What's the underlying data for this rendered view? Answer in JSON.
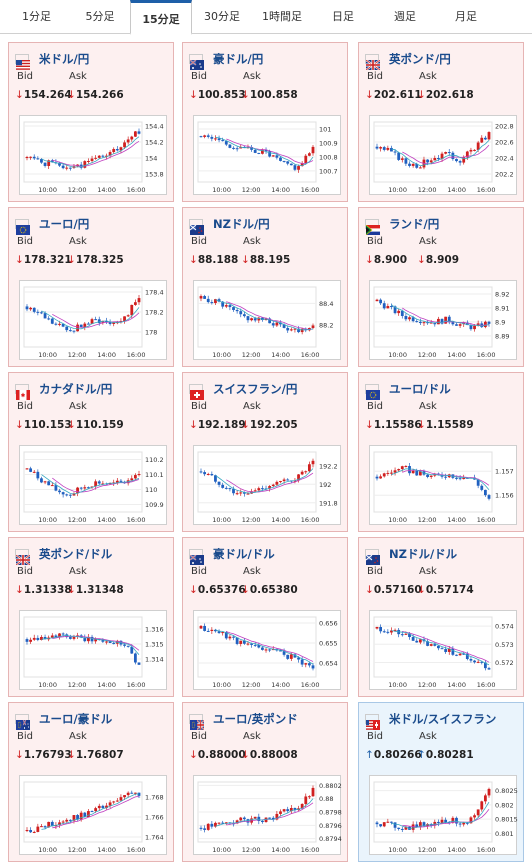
{
  "colors": {
    "up": "#d02020",
    "down": "#2060c0",
    "ma": "#c040c0",
    "ma2": "#38a8c0",
    "down_price": "#d02020",
    "up_price": "#1e5fa8"
  },
  "tabs": [
    {
      "label": "1分足",
      "active": false
    },
    {
      "label": "5分足",
      "active": false
    },
    {
      "label": "15分足",
      "active": true
    },
    {
      "label": "30分足",
      "active": false
    },
    {
      "label": "1時間足",
      "active": false
    },
    {
      "label": "日足",
      "active": false
    },
    {
      "label": "週足",
      "active": false
    },
    {
      "label": "月足",
      "active": false
    }
  ],
  "bid_label": "Bid",
  "ask_label": "Ask",
  "cards": [
    {
      "name": "米ドル/円",
      "flag": "us-flag",
      "dir": "down",
      "bid": "154.264",
      "ask": "154.266",
      "chart_data": {
        "type": "candlestick",
        "x_ticks": [
          "10:00",
          "12:00",
          "14:00",
          "16:00"
        ],
        "y_ticks": [
          "154.4",
          "154.2",
          "154",
          "153.8"
        ],
        "ylim": [
          153.7,
          154.45
        ],
        "seed": 1,
        "trend": [
          0.4,
          0.3,
          0.25,
          0.2,
          0.35,
          0.45,
          0.6,
          0.9
        ]
      }
    },
    {
      "name": "豪ドル/円",
      "flag": "au-flag",
      "dir": "down",
      "bid": "100.853",
      "ask": "100.858",
      "chart_data": {
        "type": "candlestick",
        "x_ticks": [
          "10:00",
          "12:00",
          "14:00",
          "16:00"
        ],
        "y_ticks": [
          "101",
          "100.9",
          "100.8",
          "100.7"
        ],
        "ylim": [
          100.62,
          101.05
        ],
        "seed": 2,
        "trend": [
          0.8,
          0.75,
          0.6,
          0.55,
          0.5,
          0.3,
          0.2,
          0.55
        ]
      }
    },
    {
      "name": "英ポンド/円",
      "flag": "gb-flag",
      "dir": "down",
      "bid": "202.611",
      "ask": "202.618",
      "chart_data": {
        "type": "candlestick",
        "x_ticks": [
          "10:00",
          "12:00",
          "14:00",
          "16:00"
        ],
        "y_ticks": [
          "202.8",
          "202.6",
          "202.4",
          "202.2"
        ],
        "ylim": [
          202.1,
          202.85
        ],
        "seed": 3,
        "trend": [
          0.6,
          0.5,
          0.3,
          0.25,
          0.4,
          0.45,
          0.35,
          0.6,
          0.85
        ]
      }
    },
    {
      "name": "ユーロ/円",
      "flag": "eu-flag",
      "dir": "down",
      "bid": "178.321",
      "ask": "178.325",
      "chart_data": {
        "type": "candlestick",
        "x_ticks": [
          "10:00",
          "12:00",
          "14:00",
          "16:00"
        ],
        "y_ticks": [
          "178.4",
          "178.2",
          "178"
        ],
        "ylim": [
          177.85,
          178.45
        ],
        "seed": 4,
        "trend": [
          0.7,
          0.55,
          0.35,
          0.25,
          0.35,
          0.45,
          0.4,
          0.5,
          0.85
        ]
      }
    },
    {
      "name": "NZドル/円",
      "flag": "nz-flag",
      "dir": "down",
      "bid": "88.188",
      "ask": "88.195",
      "chart_data": {
        "type": "candlestick",
        "x_ticks": [
          "10:00",
          "12:00",
          "14:00",
          "16:00"
        ],
        "y_ticks": [
          "88.4",
          "88.2"
        ],
        "ylim": [
          88.0,
          88.55
        ],
        "seed": 5,
        "trend": [
          0.85,
          0.8,
          0.65,
          0.5,
          0.45,
          0.4,
          0.3,
          0.25,
          0.35
        ]
      }
    },
    {
      "name": "ランド/円",
      "flag": "za-flag",
      "dir": "down",
      "bid": "8.900",
      "ask": "8.909",
      "chart_data": {
        "type": "candlestick",
        "x_ticks": [
          "10:00",
          "12:00",
          "14:00",
          "16:00"
        ],
        "y_ticks": [
          "8.92",
          "8.91",
          "8.9",
          "8.89"
        ],
        "ylim": [
          8.882,
          8.925
        ],
        "seed": 6,
        "trend": [
          0.8,
          0.65,
          0.5,
          0.45,
          0.4,
          0.45,
          0.35,
          0.3,
          0.4
        ]
      }
    },
    {
      "name": "カナダドル/円",
      "flag": "ca-flag",
      "dir": "down",
      "bid": "110.153",
      "ask": "110.159",
      "chart_data": {
        "type": "candlestick",
        "x_ticks": [
          "10:00",
          "12:00",
          "14:00",
          "16:00"
        ],
        "y_ticks": [
          "110.2",
          "110.1",
          "110",
          "109.9"
        ],
        "ylim": [
          109.85,
          110.25
        ],
        "seed": 7,
        "trend": [
          0.75,
          0.55,
          0.35,
          0.25,
          0.4,
          0.5,
          0.45,
          0.5,
          0.7
        ]
      }
    },
    {
      "name": "スイスフラン/円",
      "flag": "ch-flag",
      "dir": "down",
      "bid": "192.189",
      "ask": "192.205",
      "chart_data": {
        "type": "candlestick",
        "x_ticks": [
          "10:00",
          "12:00",
          "14:00",
          "16:00"
        ],
        "y_ticks": [
          "192.2",
          "192",
          "191.8"
        ],
        "ylim": [
          191.7,
          192.35
        ],
        "seed": 8,
        "trend": [
          0.7,
          0.55,
          0.35,
          0.25,
          0.35,
          0.45,
          0.5,
          0.6,
          0.85
        ]
      }
    },
    {
      "name": "ユーロ/ドル",
      "flag": "eu-flag",
      "dir": "down",
      "bid": "1.15586",
      "ask": "1.15589",
      "chart_data": {
        "type": "candlestick",
        "x_ticks": [
          "10:00",
          "12:00",
          "14:00",
          "16:00"
        ],
        "y_ticks": [
          "1.157",
          "1.156"
        ],
        "ylim": [
          1.1553,
          1.1578
        ],
        "seed": 9,
        "trend": [
          0.6,
          0.7,
          0.75,
          0.65,
          0.6,
          0.65,
          0.6,
          0.55,
          0.15
        ]
      }
    },
    {
      "name": "英ポンド/ドル",
      "flag": "gb-flag",
      "dir": "down",
      "bid": "1.31338",
      "ask": "1.31348",
      "chart_data": {
        "type": "candlestick",
        "x_ticks": [
          "10:00",
          "12:00",
          "14:00",
          "16:00"
        ],
        "y_ticks": [
          "1.316",
          "1.315",
          "1.314"
        ],
        "ylim": [
          1.3128,
          1.3168
        ],
        "seed": 10,
        "trend": [
          0.65,
          0.7,
          0.72,
          0.68,
          0.65,
          0.62,
          0.6,
          0.58,
          0.15
        ]
      }
    },
    {
      "name": "豪ドル/ドル",
      "flag": "au-flag",
      "dir": "down",
      "bid": "0.65376",
      "ask": "0.65380",
      "chart_data": {
        "type": "candlestick",
        "x_ticks": [
          "10:00",
          "12:00",
          "14:00",
          "16:00"
        ],
        "y_ticks": [
          "0.656",
          "0.655",
          "0.654"
        ],
        "ylim": [
          0.6533,
          0.6563
        ],
        "seed": 11,
        "trend": [
          0.85,
          0.8,
          0.7,
          0.55,
          0.5,
          0.45,
          0.35,
          0.25,
          0.1
        ]
      }
    },
    {
      "name": "NZドル/ドル",
      "flag": "nz-flag",
      "dir": "down",
      "bid": "0.57160",
      "ask": "0.57174",
      "chart_data": {
        "type": "candlestick",
        "x_ticks": [
          "10:00",
          "12:00",
          "14:00",
          "16:00"
        ],
        "y_ticks": [
          "0.574",
          "0.573",
          "0.572"
        ],
        "ylim": [
          0.5712,
          0.5745
        ],
        "seed": 12,
        "trend": [
          0.85,
          0.8,
          0.72,
          0.6,
          0.5,
          0.45,
          0.35,
          0.25,
          0.1
        ]
      }
    },
    {
      "name": "ユーロ/豪ドル",
      "flag": "eu-au-flag",
      "dir": "down",
      "bid": "1.76793",
      "ask": "1.76807",
      "chart_data": {
        "type": "candlestick",
        "x_ticks": [
          "10:00",
          "12:00",
          "14:00",
          "16:00"
        ],
        "y_ticks": [
          "1.768",
          "1.766",
          "1.764"
        ],
        "ylim": [
          1.7635,
          1.7695
        ],
        "seed": 13,
        "trend": [
          0.15,
          0.2,
          0.3,
          0.35,
          0.45,
          0.55,
          0.65,
          0.8,
          0.85
        ]
      }
    },
    {
      "name": "ユーロ/英ポンド",
      "flag": "eu-gb-flag",
      "dir": "down",
      "bid": "0.88000",
      "ask": "0.88008",
      "chart_data": {
        "type": "candlestick",
        "x_ticks": [
          "10:00",
          "12:00",
          "14:00",
          "16:00"
        ],
        "y_ticks": [
          "0.8802",
          "0.88",
          "0.8798",
          "0.8796",
          "0.8794"
        ],
        "ylim": [
          0.87935,
          0.88025
        ],
        "seed": 14,
        "trend": [
          0.2,
          0.25,
          0.3,
          0.35,
          0.35,
          0.4,
          0.5,
          0.6,
          0.9
        ]
      }
    },
    {
      "name": "米ドル/スイスフラン",
      "flag": "us-ch-flag",
      "dir": "up",
      "bid": "0.80266",
      "ask": "0.80281",
      "chart_data": {
        "type": "candlestick",
        "x_ticks": [
          "10:00",
          "12:00",
          "14:00",
          "16:00"
        ],
        "y_ticks": [
          "0.8025",
          "0.802",
          "0.8015",
          "0.801"
        ],
        "ylim": [
          0.8007,
          0.8028
        ],
        "seed": 15,
        "trend": [
          0.3,
          0.25,
          0.2,
          0.25,
          0.3,
          0.35,
          0.3,
          0.4,
          0.9
        ]
      }
    }
  ]
}
